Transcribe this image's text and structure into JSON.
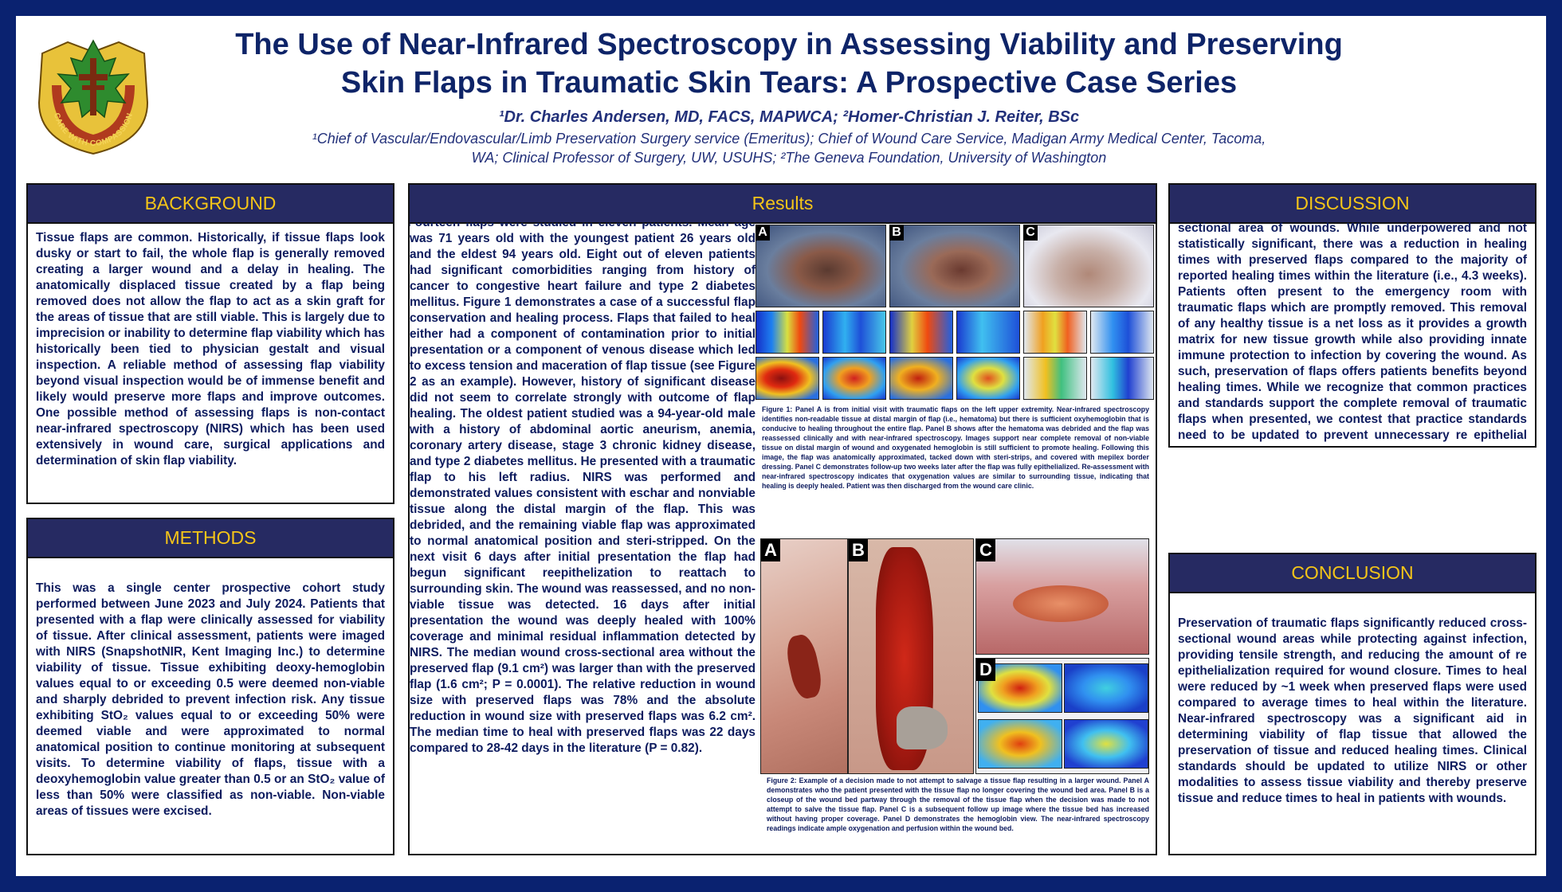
{
  "header": {
    "title_line1": "The Use of Near-Infrared Spectroscopy in Assessing Viability and Preserving",
    "title_line2": "Skin Flaps in Traumatic Skin Tears: A Prospective Case Series",
    "authors": "¹Dr. Charles Andersen, MD, FACS, MAPWCA; ²Homer-Christian J. Reiter, BSc",
    "affiliation_line1": "¹Chief of Vascular/Endovascular/Limb Preservation Surgery service (Emeritus); Chief of Wound Care Service, Madigan Army Medical Center, Tacoma,",
    "affiliation_line2": "WA; Clinical Professor of Surgery, UW, USUHS; ²The Geneva Foundation, University of Washington",
    "logo_text": "CARE WITH COMPASSION"
  },
  "background": {
    "heading": "BACKGROUND",
    "text": "Tissue flaps are common. Historically, if tissue flaps look dusky or start to fail, the whole flap is generally removed creating a larger wound and a delay in healing. The anatomically displaced tissue created by a flap being removed does not allow the flap to act as a skin graft for the areas of tissue that are still viable. This is largely due to imprecision or inability to determine flap viability which has historically been tied to physician gestalt and visual inspection. A reliable method of assessing flap viability beyond visual inspection would be of immense benefit and likely would preserve more flaps and improve outcomes. One possible method of assessing flaps is non-contact near-infrared spectroscopy (NIRS) which has been used extensively in wound care, surgical applications and determination of skin flap viability."
  },
  "methods": {
    "heading": "METHODS",
    "text": "This was a single center prospective cohort study performed between June 2023 and July 2024. Patients that presented with a flap were clinically assessed for viability of tissue. After clinical assessment, patients were imaged with NIRS (SnapshotNIR, Kent Imaging Inc.) to determine viability of tissue. Tissue exhibiting deoxy-hemoglobin values equal to or exceeding 0.5 were deemed non-viable and sharply debrided to prevent infection risk. Any tissue exhibiting StO₂ values equal to or exceeding 50% were deemed viable and were approximated to normal anatomical position to continue monitoring at subsequent visits. To determine viability of flaps, tissue with a deoxyhemoglobin value greater than 0.5 or an StO₂ value of less than 50% were classified as non-viable. Non-viable areas of tissues were excised."
  },
  "results": {
    "heading": "Results",
    "text": "Fourteen flaps were studied in eleven patients. Mean age was 71 years old with the youngest patient 26 years old and the eldest 94 years old. Eight out of eleven patients had significant comorbidities ranging from history of cancer to congestive heart failure and type 2 diabetes mellitus. Figure 1 demonstrates a case of a successful flap conservation and healing process. Flaps that failed to heal either had a component of contamination prior to initial presentation or a component of venous disease which led to excess tension and maceration of flap tissue (see Figure 2 as an example). However, history of significant disease did not seem to correlate strongly with outcome of flap healing. The oldest patient studied was a 94-year-old male with a history of abdominal aortic aneurism, anemia, coronary artery disease, stage 3 chronic kidney disease, and type 2 diabetes mellitus. He presented with a traumatic flap to his left radius. NIRS was performed and demonstrated values consistent with eschar and nonviable tissue along the distal margin of the flap. This was debrided, and the remaining viable flap was approximated to normal anatomical position and steri-stripped. On the next visit 6 days after initial presentation the flap had begun significant reepithelization to reattach to surrounding skin. The wound was reassessed, and no non-viable tissue was detected. 16 days after initial presentation the wound was deeply healed with 100% coverage and minimal residual inflammation detected by NIRS. The median wound cross-sectional area without the preserved flap (9.1 cm²) was larger than with the preserved flap (1.6 cm²; P = 0.0001). The relative reduction in wound size with preserved flaps was 78% and the absolute reduction in wound size with preserved flaps was 6.2 cm². The median time to heal with preserved flaps was 22 days compared to 28-42 days in the literature (P = 0.82).",
    "figure1": {
      "labels": [
        "A",
        "B",
        "C"
      ],
      "caption": "Figure 1: Panel A is from initial visit with traumatic flaps on the left upper extremity. Near-infrared spectroscopy identifies non-readable tissue at distal margin of flap (i.e., hematoma) but there is sufficient oxyhemoglobin that is conducive to healing throughout the entire flap. Panel B shows after the hematoma was debrided and the flap was reassessed clinically and with near-infrared spectroscopy. Images support near complete removal of non-viable tissue on distal margin of wound and oxygenated hemoglobin is still sufficient to promote healing. Following this image, the flap was anatomically approximated, tacked down with steri-strips, and covered with mepilex border dressing. Panel C demonstrates follow-up two weeks later after the flap was fully epithelialized. Re-assessment with near-infrared spectroscopy indicates that oxygenation values are similar to surrounding tissue, indicating that healing is deeply healed. Patient was then discharged from the wound care clinic."
    },
    "figure2": {
      "labels": [
        "A",
        "B",
        "C",
        "D"
      ],
      "caption": "Figure 2: Example of a decision made to not attempt to salvage a tissue flap resulting in a larger wound. Panel A demonstrates who the patient presented with the tissue flap no longer covering the wound bed area. Panel B is a closeup of the wound bed partway through the removal of the tissue flap when the decision was made to not attempt to salve the tissue flap. Panel C is a subsequent follow up image where the tissue bed has increased without having proper coverage. Panel D demonstrates the hemoglobin view. The near-infrared spectroscopy readings indicate ample oxygenation and perfusion within the wound bed."
    }
  },
  "discussion": {
    "heading": "DISCUSSION",
    "text": "sectional area of wounds. While underpowered and not statistically significant, there was a reduction in healing times with preserved flaps compared to the majority of reported healing times within the literature (i.e., 4.3 weeks). Patients often present to the emergency room with traumatic flaps which are promptly removed. This removal of any healthy tissue is a net loss as it provides a growth matrix for new tissue growth while also providing innate immune protection to infection by covering the wound. As such, preservation of flaps offers patients benefits beyond healing times. While we recognize that common practices and standards support the complete removal of traumatic flaps when presented, we contest that practice standards need to be updated to prevent unnecessary re epithelial formation that could be achieved with preservation of"
  },
  "conclusion": {
    "heading": "CONCLUSION",
    "text": "Preservation of traumatic flaps significantly reduced cross-sectional wound areas while protecting against infection, providing tensile strength, and reducing the amount of re epithelialization required for wound closure. Times to heal were reduced by ~1 week when preserved flaps were used compared to average times to heal within the literature. Near-infrared spectroscopy was a significant aid in determining viability of flap tissue that allowed the preservation of tissue and reduced healing times. Clinical standards should be updated to utilize NIRS or other modalities to assess tissue viability and thereby preserve tissue and reduce times to heal in patients with wounds."
  },
  "colors": {
    "frame": "#0a2270",
    "panel_header": "#262a62",
    "header_text": "#f5c518",
    "body_text": "#0d1b5e"
  }
}
